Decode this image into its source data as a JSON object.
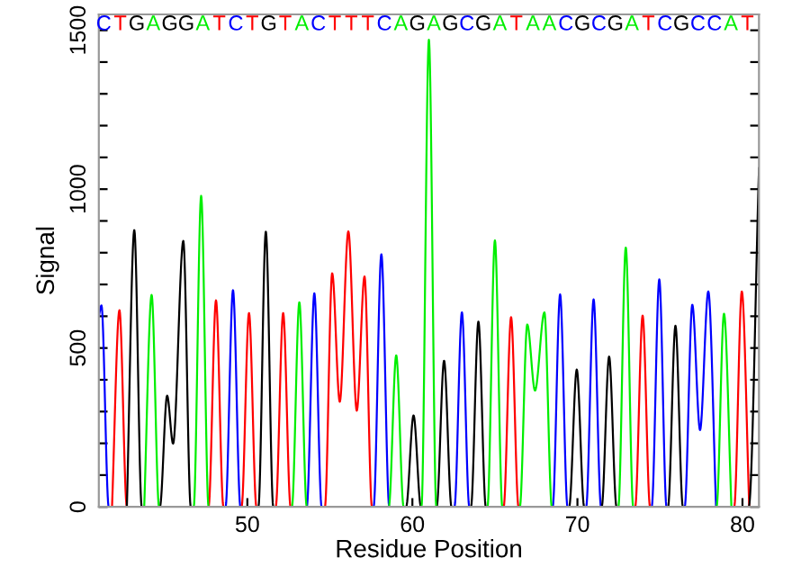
{
  "chart_data": {
    "type": "line",
    "xlabel": "Residue Position",
    "ylabel": "Signal",
    "xlim": [
      41,
      81
    ],
    "ylim": [
      0,
      1550
    ],
    "xticks": [
      50,
      60,
      70,
      80
    ],
    "yticks": [
      0,
      {
        "value": 100,
        "label": null
      },
      {
        "value": 200,
        "label": null
      },
      {
        "value": 300,
        "label": null
      },
      {
        "value": 400,
        "label": null
      },
      500,
      {
        "value": 600,
        "label": null
      },
      {
        "value": 700,
        "label": null
      },
      {
        "value": 800,
        "label": null
      },
      {
        "value": 900,
        "label": null
      },
      1000,
      {
        "value": 1100,
        "label": null
      },
      {
        "value": 1200,
        "label": null
      },
      {
        "value": 1300,
        "label": null
      },
      {
        "value": 1400,
        "label": null
      },
      1500
    ],
    "grid": false,
    "legend": false,
    "series": [
      {
        "color": "#0000ff",
        "x": [
          41.0,
          41.16,
          41.6,
          48.68,
          49.13,
          49.58,
          53.6,
          54.06,
          54.5,
          57.65,
          58.12,
          58.6,
          62.55,
          63.0,
          63.45,
          68.5,
          68.95,
          69.4,
          70.53,
          70.98,
          71.43,
          74.5,
          74.96,
          75.4,
          76.5,
          76.96,
          77.43,
          77.93,
          78.4
        ],
        "values": [
          600,
          634,
          0,
          0,
          682,
          0,
          0,
          672,
          0,
          0,
          795,
          0,
          0,
          612,
          0,
          0,
          669,
          0,
          0,
          653,
          0,
          0,
          716,
          0,
          0,
          636,
          242,
          678,
          0
        ]
      },
      {
        "color": "#ff0000",
        "x": [
          41.8,
          42.25,
          42.7,
          47.65,
          48.1,
          48.55,
          49.65,
          50.1,
          50.55,
          51.72,
          52.17,
          52.62,
          54.7,
          55.14,
          55.6,
          56.12,
          56.63,
          57.1,
          57.55,
          65.53,
          65.98,
          66.43,
          73.5,
          73.95,
          74.4,
          79.5,
          79.96,
          80.41
        ],
        "values": [
          0,
          619,
          0,
          0,
          650,
          0,
          0,
          610,
          0,
          0,
          610,
          0,
          0,
          735,
          331,
          867,
          303,
          725,
          0,
          0,
          597,
          0,
          0,
          602,
          0,
          0,
          678,
          0
        ]
      },
      {
        "color": "#000000",
        "x": [
          42.7,
          43.15,
          43.6,
          44.7,
          45.14,
          45.5,
          46.12,
          46.57,
          50.67,
          51.12,
          51.57,
          59.62,
          60.07,
          60.52,
          61.47,
          61.92,
          62.37,
          63.55,
          64.0,
          64.45,
          69.5,
          69.96,
          70.41,
          71.47,
          71.92,
          72.37,
          75.49,
          75.94,
          76.39,
          80.38,
          81.0
        ],
        "values": [
          0,
          871,
          0,
          0,
          350,
          199,
          837,
          0,
          0,
          866,
          0,
          0,
          288,
          0,
          0,
          460,
          0,
          0,
          583,
          0,
          0,
          432,
          0,
          0,
          473,
          0,
          0,
          570,
          0,
          0,
          1066
        ]
      },
      {
        "color": "#00ee00",
        "x": [
          43.75,
          44.2,
          44.65,
          46.75,
          47.2,
          47.65,
          52.7,
          53.15,
          53.6,
          58.57,
          59.02,
          59.47,
          60.55,
          61.0,
          61.45,
          64.55,
          65.0,
          65.45,
          66.51,
          66.96,
          67.43,
          68.0,
          68.45,
          72.48,
          72.93,
          73.38,
          78.43,
          78.88,
          79.33
        ],
        "values": [
          0,
          667,
          0,
          0,
          979,
          0,
          0,
          644,
          0,
          0,
          477,
          0,
          0,
          1470,
          0,
          0,
          839,
          0,
          0,
          574,
          366,
          612,
          0,
          0,
          816,
          0,
          0,
          608,
          0
        ]
      }
    ],
    "annotations": [
      "CTGAGGATCTGTACTTTCAGAGCGATAACGCGATCGCCAT"
    ]
  }
}
